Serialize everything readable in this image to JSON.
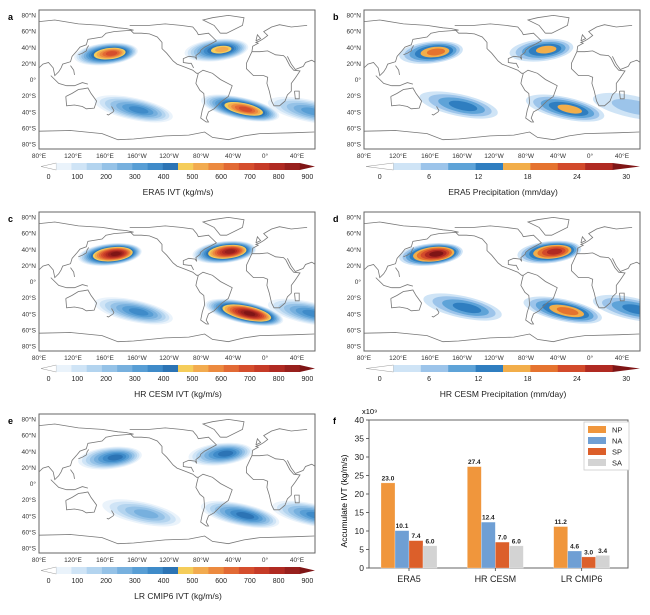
{
  "colormaps": {
    "ivt": {
      "ticks": [
        "0",
        "100",
        "200",
        "300",
        "400",
        "500",
        "600",
        "700",
        "800",
        "900"
      ],
      "min": 0,
      "max": 900,
      "step": 50,
      "colors": [
        "#ffffff",
        "#eaf3fb",
        "#cfe4f6",
        "#b3d4ef",
        "#95c2e7",
        "#77b0de",
        "#589ed5",
        "#3f8bc9",
        "#2c74b5",
        "#f5cd5a",
        "#f2ab4f",
        "#ec8a3f",
        "#e26a35",
        "#d54e2d",
        "#c63b27",
        "#b02a22",
        "#98201d",
        "#7f1516"
      ]
    },
    "precip": {
      "ticks": [
        "0",
        "6",
        "12",
        "18",
        "24",
        "30"
      ],
      "min": 0,
      "max": 30,
      "step": 3,
      "colors": [
        "#ffffff",
        "#cfe4f6",
        "#9cc4ea",
        "#5ea3d8",
        "#2f7ec0",
        "#f2ae4a",
        "#e5732f",
        "#d24a2b",
        "#b02a22",
        "#7f1516"
      ]
    }
  },
  "map_axes": {
    "lat_ticks": [
      "80°N",
      "60°N",
      "40°N",
      "20°N",
      "0°",
      "20°S",
      "40°S",
      "60°S",
      "80°S"
    ],
    "lon_ticks": [
      "80°E",
      "120°E",
      "160°E",
      "160°W",
      "120°W",
      "80°W",
      "40°W",
      "0°",
      "40°E"
    ]
  },
  "panels": [
    {
      "id": "a",
      "label": "a",
      "title": "ERA5 IVT (kg/m/s)",
      "cmap": "ivt",
      "blobs": [
        {
          "region": "North Pacific",
          "lon": 165,
          "lat": 33,
          "peak": 650
        },
        {
          "region": "North Atlantic",
          "lon": -55,
          "lat": 38,
          "peak": 500
        },
        {
          "region": "South Pacific",
          "lon": -160,
          "lat": -38,
          "peak": 350
        },
        {
          "region": "South Atlantic",
          "lon": -25,
          "lat": -37,
          "peak": 650
        },
        {
          "region": "South Indian",
          "lon": 60,
          "lat": -40,
          "peak": 300
        }
      ]
    },
    {
      "id": "b",
      "label": "b",
      "title": "ERA5 Precipitation (mm/day)",
      "cmap": "precip",
      "blobs": [
        {
          "region": "North Pacific",
          "lon": 165,
          "lat": 35,
          "peak": 18
        },
        {
          "region": "North Atlantic",
          "lon": -55,
          "lat": 38,
          "peak": 16
        },
        {
          "region": "South Pacific",
          "lon": -160,
          "lat": -33,
          "peak": 12
        },
        {
          "region": "South Atlantic",
          "lon": -25,
          "lat": -37,
          "peak": 17
        },
        {
          "region": "South Indian",
          "lon": 60,
          "lat": -35,
          "peak": 8
        }
      ]
    },
    {
      "id": "c",
      "label": "c",
      "title": "HR CESM IVT (kg/m/s)",
      "cmap": "ivt",
      "blobs": [
        {
          "region": "North Pacific",
          "lon": 170,
          "lat": 35,
          "peak": 850
        },
        {
          "region": "North Atlantic",
          "lon": -45,
          "lat": 38,
          "peak": 800
        },
        {
          "region": "South Pacific",
          "lon": -160,
          "lat": -38,
          "peak": 350
        },
        {
          "region": "South Atlantic",
          "lon": -20,
          "lat": -40,
          "peak": 850
        },
        {
          "region": "South Indian",
          "lon": 60,
          "lat": -40,
          "peak": 350
        }
      ]
    },
    {
      "id": "d",
      "label": "d",
      "title": "HR CESM Precipitation (mm/day)",
      "cmap": "precip",
      "blobs": [
        {
          "region": "North Pacific",
          "lon": 165,
          "lat": 35,
          "peak": 27
        },
        {
          "region": "North Atlantic",
          "lon": -45,
          "lat": 38,
          "peak": 25
        },
        {
          "region": "South Pacific",
          "lon": -155,
          "lat": -33,
          "peak": 14
        },
        {
          "region": "South Atlantic",
          "lon": -28,
          "lat": -37,
          "peak": 20
        },
        {
          "region": "South Indian",
          "lon": 60,
          "lat": -35,
          "peak": 12
        }
      ]
    },
    {
      "id": "e",
      "label": "e",
      "title": "LR CMIP6 IVT (kg/m/s)",
      "cmap": "ivt",
      "blobs": [
        {
          "region": "North Pacific",
          "lon": 170,
          "lat": 33,
          "peak": 400
        },
        {
          "region": "North Atlantic",
          "lon": -50,
          "lat": 38,
          "peak": 420
        },
        {
          "region": "South Pacific",
          "lon": -150,
          "lat": -38,
          "peak": 250
        },
        {
          "region": "South Atlantic",
          "lon": -25,
          "lat": -40,
          "peak": 420
        },
        {
          "region": "South Indian",
          "lon": 65,
          "lat": -40,
          "peak": 350
        }
      ]
    }
  ],
  "chart_data": {
    "type": "bar",
    "label": "f",
    "title": "",
    "xlabel": "",
    "ylabel": "Accumulate IVT (kg/m/s)",
    "y_multiplier": "x10⁹",
    "ylim": [
      0,
      40
    ],
    "yticks": [
      0,
      5,
      10,
      15,
      20,
      25,
      30,
      35,
      40
    ],
    "categories": [
      "ERA5",
      "HR CESM",
      "LR CMIP6"
    ],
    "series": [
      {
        "name": "NP",
        "color": "#f0963c",
        "values": [
          23.0,
          27.4,
          11.2
        ]
      },
      {
        "name": "NA",
        "color": "#6f9fd4",
        "values": [
          10.1,
          12.4,
          4.6
        ]
      },
      {
        "name": "SP",
        "color": "#dc5f2a",
        "values": [
          7.4,
          7.0,
          3.0
        ]
      },
      {
        "name": "SA",
        "color": "#d3d3d3",
        "values": [
          6.0,
          6.0,
          3.4
        ]
      }
    ],
    "legend_position": "top-right",
    "grid": false
  }
}
